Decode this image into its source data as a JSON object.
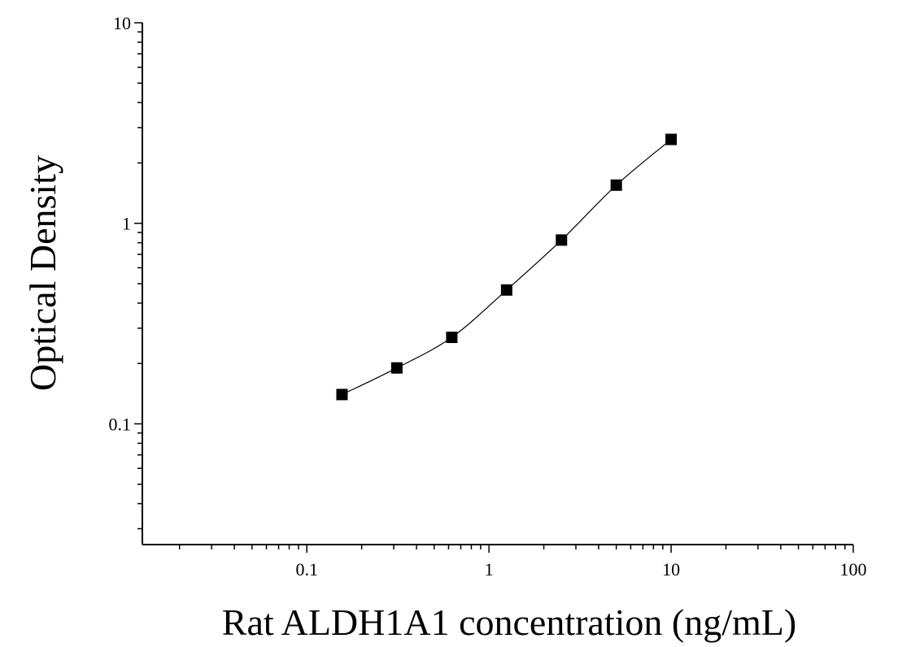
{
  "chart_data": {
    "type": "scatter",
    "title": "",
    "xlabel": "Rat ALDH1A1 concentration (ng/mL)",
    "ylabel": "Optical Density",
    "xscale": "log",
    "yscale": "log",
    "xlim": [
      0.0125,
      100
    ],
    "ylim": [
      0.025,
      10
    ],
    "grid": false,
    "legend": "none",
    "x_ticks": [
      {
        "value": 0.1,
        "label": "0.1"
      },
      {
        "value": 1,
        "label": "1"
      },
      {
        "value": 10,
        "label": "10"
      },
      {
        "value": 100,
        "label": "100"
      }
    ],
    "y_ticks": [
      {
        "value": 0.1,
        "label": "0.1"
      },
      {
        "value": 1,
        "label": "1"
      },
      {
        "value": 10,
        "label": "10"
      }
    ],
    "series": [
      {
        "marker": "square",
        "color": "#000000",
        "fit_curve": true,
        "points": [
          {
            "x": 0.156,
            "y": 0.14
          },
          {
            "x": 0.312,
            "y": 0.19
          },
          {
            "x": 0.625,
            "y": 0.27
          },
          {
            "x": 1.25,
            "y": 0.465
          },
          {
            "x": 2.5,
            "y": 0.825
          },
          {
            "x": 5,
            "y": 1.55
          },
          {
            "x": 10,
            "y": 2.62
          }
        ]
      }
    ]
  }
}
